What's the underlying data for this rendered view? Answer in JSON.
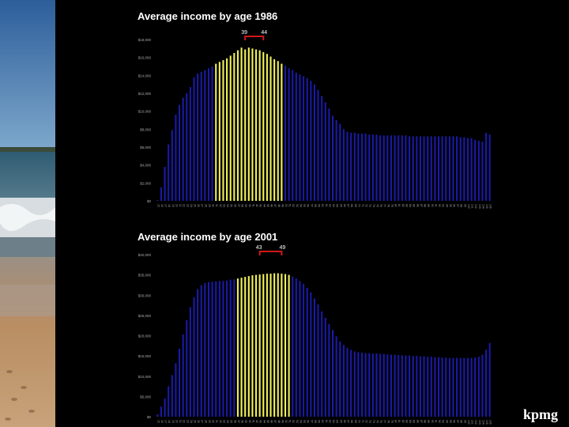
{
  "logo_text": "kpmg",
  "chart_data": [
    {
      "type": "bar",
      "title": "Average income by age 1986",
      "x_start": 15,
      "ylim": [
        0,
        18000
      ],
      "yticks": [
        0,
        2000,
        4000,
        6000,
        8000,
        10000,
        12000,
        14000,
        16000,
        18000
      ],
      "ytick_labels": [
        "$0",
        "$2,000",
        "$4,000",
        "$6,000",
        "$8,000",
        "$10,000",
        "$12,000",
        "$14,000",
        "$16,000",
        "$18,000"
      ],
      "highlight_range": [
        31,
        49
      ],
      "bracket": {
        "from": 39,
        "to": 44,
        "from_label": "39",
        "to_label": "44"
      },
      "colors": {
        "bar": "#1a1aa8",
        "highlight": "#f2f25a",
        "bracket": "#d01818",
        "axis_text": "#aaaaaa"
      },
      "values": [
        100,
        1500,
        3800,
        6300,
        7900,
        9600,
        10700,
        11500,
        12000,
        12700,
        13800,
        14200,
        14400,
        14600,
        14800,
        15000,
        15300,
        15500,
        15700,
        15900,
        16200,
        16500,
        16800,
        17100,
        16900,
        17100,
        17000,
        16900,
        16800,
        16600,
        16400,
        16100,
        15800,
        15600,
        15300,
        15100,
        14800,
        14600,
        14300,
        14100,
        13900,
        13700,
        13400,
        13000,
        12400,
        11700,
        11000,
        10300,
        9500,
        9000,
        8600,
        8000,
        7700,
        7600,
        7600,
        7500,
        7500,
        7500,
        7400,
        7400,
        7400,
        7300,
        7300,
        7300,
        7300,
        7300,
        7300,
        7300,
        7300,
        7200,
        7200,
        7200,
        7200,
        7200,
        7200,
        7200,
        7200,
        7200,
        7200,
        7200,
        7200,
        7200,
        7200,
        7100,
        7100,
        7000,
        7000,
        6800,
        6700,
        6600,
        7600,
        7400
      ]
    },
    {
      "type": "bar",
      "title": "Average income by age 2001",
      "x_start": 15,
      "ylim": [
        0,
        40000
      ],
      "yticks": [
        0,
        5000,
        10000,
        15000,
        20000,
        25000,
        30000,
        35000,
        40000
      ],
      "ytick_labels": [
        "$0",
        "$5,000",
        "$10,000",
        "$15,000",
        "$20,000",
        "$25,000",
        "$30,000",
        "$35,000",
        "$40,000"
      ],
      "highlight_range": [
        37,
        51
      ],
      "bracket": {
        "from": 43,
        "to": 49,
        "from_label": "43",
        "to_label": "49"
      },
      "colors": {
        "bar": "#1a1aa8",
        "highlight": "#f2f25a",
        "bracket": "#d01818",
        "axis_text": "#aaaaaa"
      },
      "values": [
        600,
        2500,
        4500,
        7500,
        10300,
        13200,
        16800,
        20300,
        23800,
        27000,
        29500,
        31500,
        32500,
        33000,
        33200,
        33300,
        33400,
        33500,
        33500,
        33600,
        33800,
        33900,
        34100,
        34300,
        34500,
        34700,
        34900,
        35000,
        35100,
        35200,
        35300,
        35300,
        35400,
        35400,
        35300,
        35200,
        35000,
        34600,
        34100,
        33500,
        32800,
        31800,
        30700,
        29200,
        27700,
        26000,
        24400,
        22900,
        21400,
        19800,
        18600,
        17700,
        17000,
        16500,
        16100,
        15900,
        15800,
        15700,
        15700,
        15600,
        15600,
        15500,
        15500,
        15400,
        15300,
        15300,
        15200,
        15200,
        15100,
        15100,
        15000,
        15000,
        14900,
        14900,
        14800,
        14800,
        14700,
        14700,
        14600,
        14600,
        14500,
        14500,
        14500,
        14500,
        14500,
        14500,
        14500,
        14600,
        14800,
        15300,
        16500,
        18200
      ]
    }
  ]
}
